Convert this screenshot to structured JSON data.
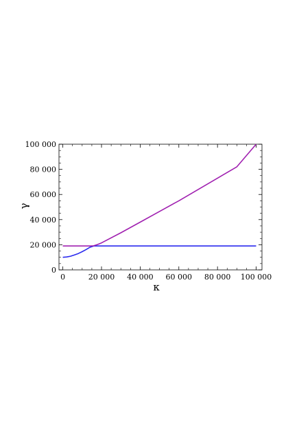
{
  "chart_data": {
    "type": "line",
    "xlabel": "κ",
    "ylabel": "γ",
    "xlim": [
      -2000,
      103000
    ],
    "ylim": [
      0,
      100000
    ],
    "x_ticks": [
      0,
      20000,
      40000,
      60000,
      80000,
      100000
    ],
    "x_tick_labels": [
      "0",
      "20 000",
      "40 000",
      "60 000",
      "80 000",
      "100 000"
    ],
    "y_ticks": [
      0,
      20000,
      40000,
      60000,
      80000,
      100000
    ],
    "y_tick_labels": [
      "0",
      "20 000",
      "40 000",
      "60 000",
      "80 000",
      "100 000"
    ],
    "grid": false,
    "frame": true,
    "series": [
      {
        "color": "#2a2aee",
        "x": [
          0,
          2000,
          4000,
          6000,
          8000,
          10000,
          12000,
          14000,
          16000,
          18000,
          20000,
          40000,
          60000,
          80000,
          100000
        ],
        "y": [
          10000,
          10300,
          10900,
          11900,
          13000,
          14500,
          16200,
          18000,
          19000,
          19000,
          19000,
          19000,
          19000,
          19000,
          19000
        ]
      },
      {
        "color": "#a020b0",
        "x": [
          0,
          14000,
          16000,
          18000,
          20000,
          30000,
          40000,
          50000,
          60000,
          70000,
          80000,
          90000,
          100000
        ],
        "y": [
          19000,
          19000,
          19200,
          20200,
          21500,
          29500,
          38000,
          46500,
          55000,
          64000,
          73000,
          82000,
          100000
        ]
      }
    ]
  }
}
